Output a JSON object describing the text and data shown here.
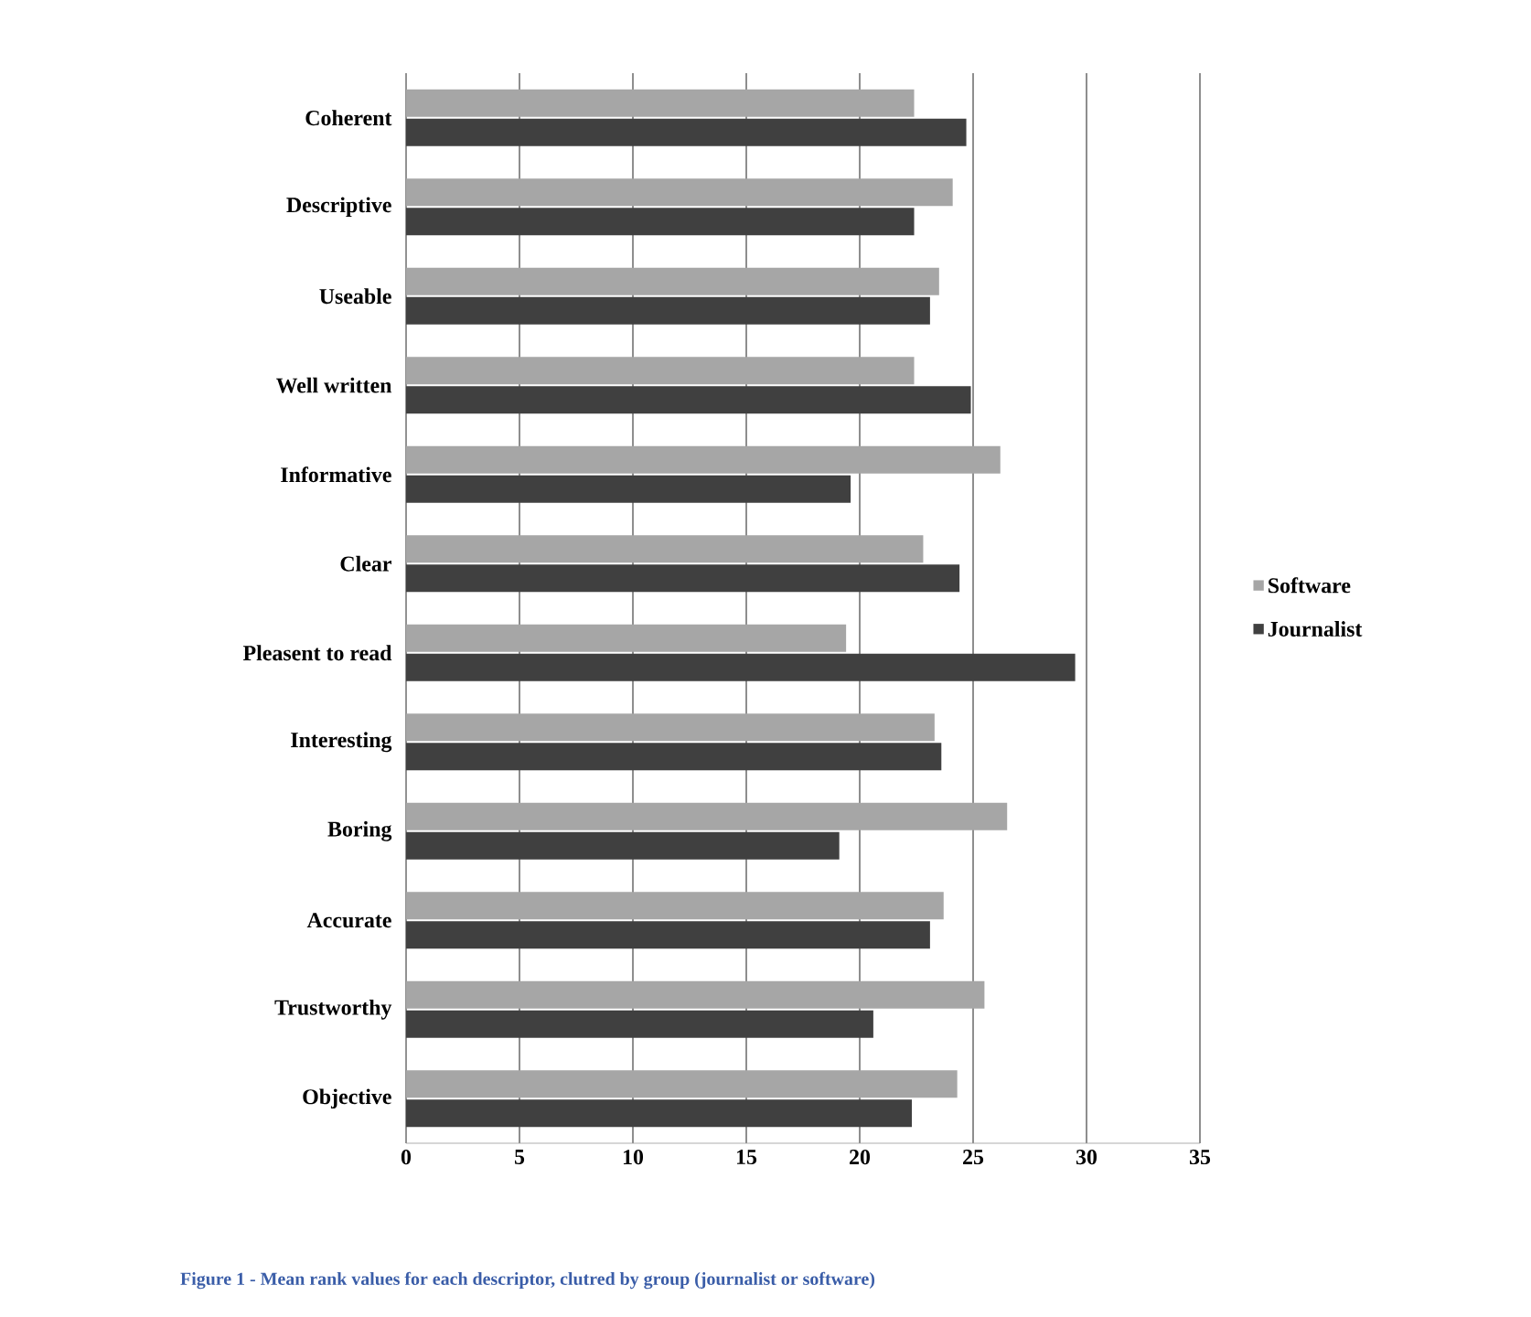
{
  "chart_data": {
    "type": "bar",
    "orientation": "horizontal",
    "categories": [
      "Coherent",
      "Descriptive",
      "Useable",
      "Well written",
      "Informative",
      "Clear",
      "Pleasent to read",
      "Interesting",
      "Boring",
      "Accurate",
      "Trustworthy",
      "Objective"
    ],
    "series": [
      {
        "name": "Software",
        "color": "#a6a6a6",
        "values": [
          22.4,
          24.1,
          23.5,
          22.4,
          26.2,
          22.8,
          19.4,
          23.3,
          26.5,
          23.7,
          25.5,
          24.3
        ]
      },
      {
        "name": "Journalist",
        "color": "#404040",
        "values": [
          24.7,
          22.4,
          23.1,
          24.9,
          19.6,
          24.4,
          29.5,
          23.6,
          19.1,
          23.1,
          20.6,
          22.3
        ]
      }
    ],
    "xlim": [
      0,
      35
    ],
    "xticks": [
      0,
      5,
      10,
      15,
      20,
      25,
      30,
      35
    ],
    "grid": "x",
    "legend": "right",
    "annotations": [
      "Figure 1 - Mean rank values for each descriptor, clutred by group (journalist or software)"
    ]
  }
}
